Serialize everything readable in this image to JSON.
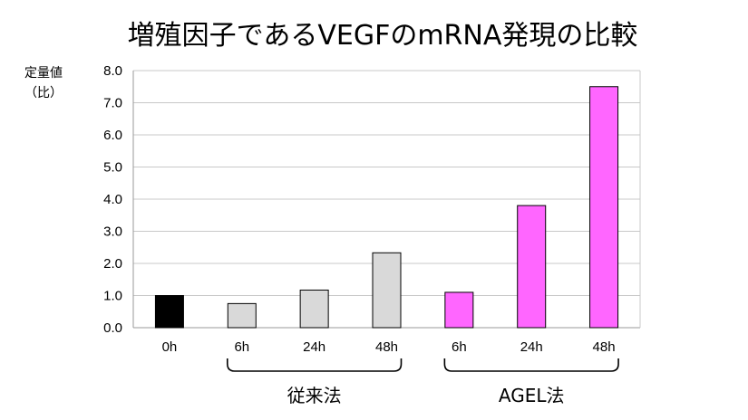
{
  "chart_data": {
    "type": "bar",
    "title": "増殖因子であるVEGFのmRNA発現の比較",
    "ylabel_lines": [
      "定量値",
      "（比）"
    ],
    "xlabel": "",
    "ylim": [
      0,
      8
    ],
    "y_ticks": [
      "0.0",
      "1.0",
      "2.0",
      "3.0",
      "4.0",
      "5.0",
      "6.0",
      "7.0",
      "8.0"
    ],
    "categories": [
      "0h",
      "6h",
      "24h",
      "48h",
      "6h",
      "24h",
      "48h"
    ],
    "values": [
      1.0,
      0.75,
      1.17,
      2.33,
      1.1,
      3.8,
      7.5
    ],
    "bar_colors": [
      "#000000",
      "#d9d9d9",
      "#d9d9d9",
      "#d9d9d9",
      "#ff66ff",
      "#ff66ff",
      "#ff66ff"
    ],
    "groups": [
      {
        "label": "従来法",
        "from": 1,
        "to": 3
      },
      {
        "label": "AGEL法",
        "from": 4,
        "to": 6
      }
    ],
    "grid": true,
    "legend": "none"
  }
}
